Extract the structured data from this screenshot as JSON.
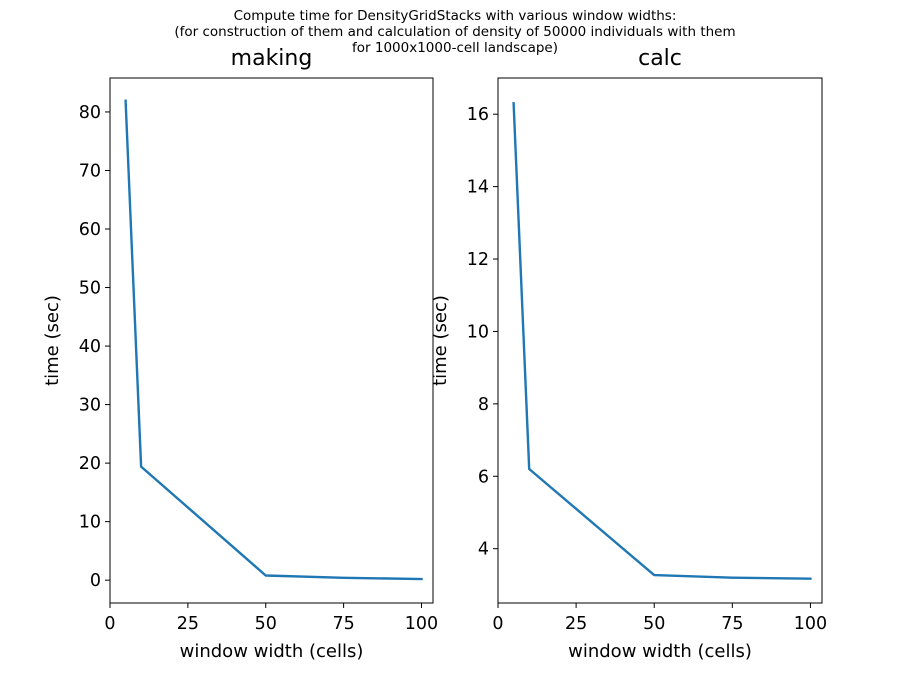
{
  "figure": {
    "title_lines": [
      "Compute time for DensityGridStacks with various window widths:",
      "(for construction of them and calculation of density of 50000 individuals with them",
      "for 1000x1000-cell landscape)"
    ]
  },
  "chart_data": [
    {
      "type": "line",
      "title": "making",
      "xlabel": "window width (cells)",
      "ylabel": "time (sec)",
      "xlim": [
        0,
        103.7
      ],
      "ylim": [
        -3.9,
        85.8
      ],
      "xticks": [
        0,
        25,
        50,
        75,
        100
      ],
      "xtick_labels": [
        "0",
        "25",
        "50",
        "75",
        "100"
      ],
      "yticks": [
        0,
        10,
        20,
        30,
        40,
        50,
        60,
        70,
        80
      ],
      "ytick_labels": [
        "0",
        "10",
        "20",
        "30",
        "40",
        "50",
        "60",
        "70",
        "80"
      ],
      "grid": false,
      "series": [
        {
          "color": "#1f77b4",
          "x": [
            5,
            10,
            50,
            75,
            100
          ],
          "y": [
            81.9,
            19.4,
            0.8,
            0.4,
            0.2
          ]
        }
      ]
    },
    {
      "type": "line",
      "title": "calc",
      "xlabel": "window width (cells)",
      "ylabel": "time (sec)",
      "xlim": [
        0,
        103.7
      ],
      "ylim": [
        2.5,
        17.0
      ],
      "xticks": [
        0,
        25,
        50,
        75,
        100
      ],
      "xtick_labels": [
        "0",
        "25",
        "50",
        "75",
        "100"
      ],
      "yticks": [
        4,
        6,
        8,
        10,
        12,
        14,
        16
      ],
      "ytick_labels": [
        "4",
        "6",
        "8",
        "10",
        "12",
        "14",
        "16"
      ],
      "grid": false,
      "series": [
        {
          "color": "#1f77b4",
          "x": [
            5,
            10,
            50,
            75,
            100
          ],
          "y": [
            16.3,
            6.2,
            3.27,
            3.2,
            3.17
          ]
        }
      ]
    }
  ]
}
